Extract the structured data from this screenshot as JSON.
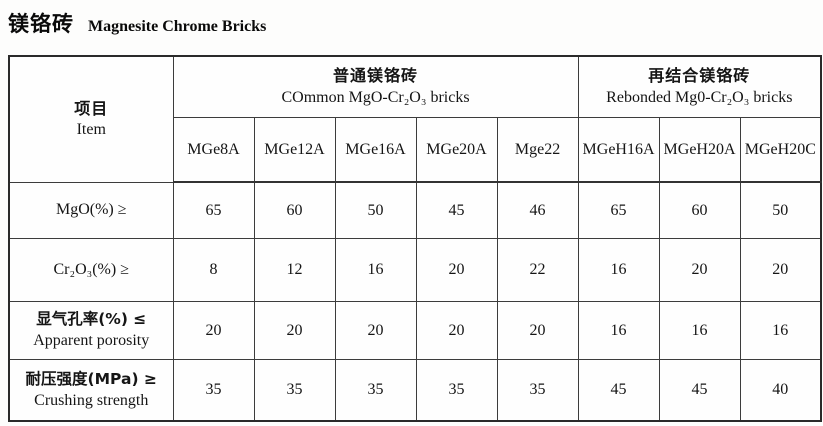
{
  "page": {
    "title_zh": "镁铬砖",
    "title_en": "Magnesite Chrome Bricks"
  },
  "table": {
    "item_header": {
      "zh": "项目",
      "en": "Item"
    },
    "groups": [
      {
        "zh": "普通镁铬砖",
        "en": "COmmon MgO-Cr₂O₃ bricks",
        "span": 5
      },
      {
        "zh": "再结合镁铬砖",
        "en": "Rebonded Mg0-Cr₂O₃ bricks",
        "span": 3
      }
    ],
    "grades": [
      "MGe8A",
      "MGe12A",
      "MGe16A",
      "MGe20A",
      "Mge22",
      "MGeH16A",
      "MGeH20A",
      "MGeH20C"
    ],
    "rows": [
      {
        "line1": "MgO(%)  ≥",
        "line2": "",
        "values": [
          "65",
          "60",
          "50",
          "45",
          "46",
          "65",
          "60",
          "50"
        ]
      },
      {
        "line1": "Cr₂O₃(%)  ≥",
        "line2": "",
        "values": [
          "8",
          "12",
          "16",
          "20",
          "22",
          "16",
          "20",
          "20"
        ]
      },
      {
        "line1": "显气孔率(%)  ≤",
        "line2": "Apparent porosity",
        "values": [
          "20",
          "20",
          "20",
          "20",
          "20",
          "16",
          "16",
          "16"
        ]
      },
      {
        "line1": "耐压强度(MPa) ≥",
        "line2": "Crushing strength",
        "values": [
          "35",
          "35",
          "35",
          "35",
          "35",
          "45",
          "45",
          "40"
        ]
      }
    ]
  }
}
